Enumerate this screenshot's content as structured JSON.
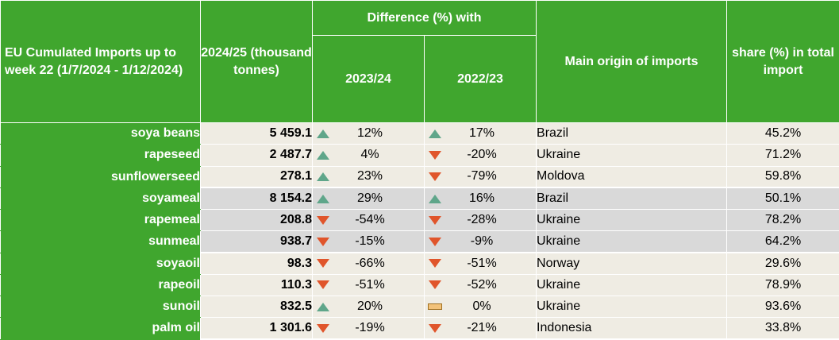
{
  "header": {
    "title": "EU Cumulated Imports up to week 22 (1/7/2024 - 1/12/2024)",
    "volume_col": "2024/25 (thousand tonnes)",
    "diff_group": "Difference (%) with",
    "diff_col_1": "2023/24",
    "diff_col_2": "2022/23",
    "origin_col": "Main origin of imports",
    "share_col": "share (%) in total import"
  },
  "colors": {
    "header_green": "#40a62e",
    "row_beige": "#efece3",
    "row_grey": "#d9d9d9",
    "up_arrow": "#5fa68a",
    "down_arrow": "#e0552b",
    "flat_marker": "#f2c27a"
  },
  "rows": [
    {
      "product": "soya beans",
      "volume": "5 459.1",
      "d1_dir": "up",
      "d1": "12%",
      "d2_dir": "up",
      "d2": "17%",
      "origin": "Brazil",
      "share": "45.2%",
      "group": 1
    },
    {
      "product": "rapeseed",
      "volume": "2 487.7",
      "d1_dir": "up",
      "d1": "4%",
      "d2_dir": "down",
      "d2": "-20%",
      "origin": "Ukraine",
      "share": "71.2%",
      "group": 1
    },
    {
      "product": "sunflowerseed",
      "volume": "278.1",
      "d1_dir": "up",
      "d1": "23%",
      "d2_dir": "down",
      "d2": "-79%",
      "origin": "Moldova",
      "share": "59.8%",
      "group": 1
    },
    {
      "product": "soyameal",
      "volume": "8 154.2",
      "d1_dir": "up",
      "d1": "29%",
      "d2_dir": "up",
      "d2": "16%",
      "origin": "Brazil",
      "share": "50.1%",
      "group": 2
    },
    {
      "product": "rapemeal",
      "volume": "208.8",
      "d1_dir": "down",
      "d1": "-54%",
      "d2_dir": "down",
      "d2": "-28%",
      "origin": "Ukraine",
      "share": "78.2%",
      "group": 2
    },
    {
      "product": "sunmeal",
      "volume": "938.7",
      "d1_dir": "down",
      "d1": "-15%",
      "d2_dir": "down",
      "d2": "-9%",
      "origin": "Ukraine",
      "share": "64.2%",
      "group": 2
    },
    {
      "product": "soyaoil",
      "volume": "98.3",
      "d1_dir": "down",
      "d1": "-66%",
      "d2_dir": "down",
      "d2": "-51%",
      "origin": "Norway",
      "share": "29.6%",
      "group": 3
    },
    {
      "product": "rapeoil",
      "volume": "110.3",
      "d1_dir": "down",
      "d1": "-51%",
      "d2_dir": "down",
      "d2": "-52%",
      "origin": "Ukraine",
      "share": "78.9%",
      "group": 3
    },
    {
      "product": "sunoil",
      "volume": "832.5",
      "d1_dir": "up",
      "d1": "20%",
      "d2_dir": "flat",
      "d2": "0%",
      "origin": "Ukraine",
      "share": "93.6%",
      "group": 3
    },
    {
      "product": "palm oil",
      "volume": "1 301.6",
      "d1_dir": "down",
      "d1": "-19%",
      "d2_dir": "down",
      "d2": "-21%",
      "origin": "Indonesia",
      "share": "33.8%",
      "group": 3
    }
  ]
}
